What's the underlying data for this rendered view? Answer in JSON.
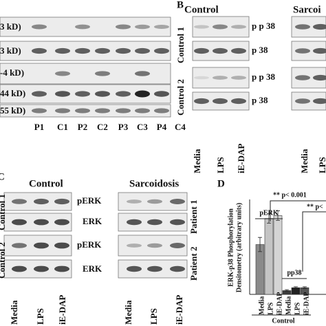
{
  "panel_a": {
    "bands": [
      "3 kD)",
      "3 kD)",
      "-4 kD)",
      "44 kD)",
      "55 kD)"
    ],
    "lanes": [
      "P1",
      "C1",
      "P2",
      "C2",
      "P3",
      "C3",
      "P4",
      "C4"
    ]
  },
  "panel_b": {
    "label": "B",
    "groups": [
      "Control",
      "Sarcoi"
    ],
    "rows": [
      "Control 1",
      "Control 2"
    ],
    "bands": [
      "p p 38",
      "p 38",
      "p p 38",
      "p 38"
    ],
    "lanes": [
      "Media",
      "LPS",
      "iE-DAP",
      "Media",
      "LPS"
    ]
  },
  "panel_c": {
    "label": "C",
    "groups": [
      "Control",
      "Sarcoidosis"
    ],
    "rows_left": [
      "Control 1",
      "Control 2"
    ],
    "rows_right": [
      "Patient 1",
      "Patient 2"
    ],
    "bands": [
      "pERK",
      "ERK",
      "pERK",
      "ERK"
    ],
    "lanes": [
      "Media",
      "LPS",
      "iE-DAP",
      "Media",
      "LPS",
      "iE-DAP"
    ]
  },
  "chart_data": {
    "type": "bar",
    "label": "D",
    "y_label": [
      "ERK-p38 Phosphorylation",
      "Densitometry (arbitrary units)"
    ],
    "categories": [
      "Media",
      "LPS",
      "iE-DAP"
    ],
    "series": [
      {
        "name": "pERK",
        "colors": [
          "#8a8a8a",
          "#c4c4c4",
          "#d4d4d4"
        ],
        "values": [
          10.5,
          16,
          16.6
        ],
        "errors": [
          1.5,
          1,
          1
        ]
      },
      {
        "name": "pp38",
        "colors": [
          "#3c3c3c",
          "#222222",
          "#555555"
        ],
        "values": [
          0.8,
          1.4,
          1.4
        ],
        "errors": [
          0.2,
          0.2,
          0.2
        ]
      }
    ],
    "annotations": [
      "** p< 0.001",
      "** p<"
    ],
    "group_label": "Control",
    "ylim": [
      0,
      20
    ]
  }
}
